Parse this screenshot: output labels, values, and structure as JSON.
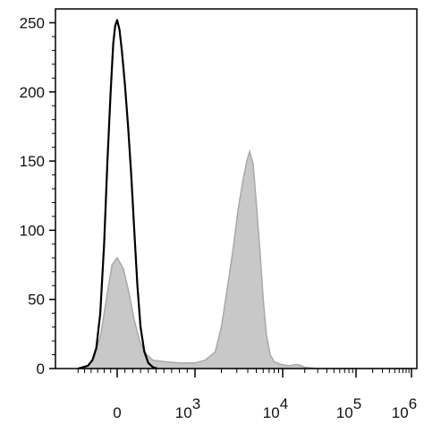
{
  "chart_data": {
    "type": "area",
    "title": "",
    "xlabel": "",
    "ylabel": "",
    "x_scale": "biexponential",
    "x_ticks": [
      {
        "value": 0,
        "base": "0",
        "exp": ""
      },
      {
        "value": 1000,
        "base": "10",
        "exp": "3"
      },
      {
        "value": 10000,
        "base": "10",
        "exp": "4"
      },
      {
        "value": 100000,
        "base": "10",
        "exp": "5"
      },
      {
        "value": 1000000,
        "base": "10",
        "exp": "6"
      }
    ],
    "y_ticks": [
      "0",
      "50",
      "100",
      "150",
      "200",
      "250"
    ],
    "ylim": [
      0,
      260
    ],
    "grid": false,
    "legend": "none",
    "series": [
      {
        "style": "line",
        "color": "#000000",
        "points": [
          [
            -600,
            0
          ],
          [
            -450,
            2
          ],
          [
            -380,
            6
          ],
          [
            -320,
            15
          ],
          [
            -260,
            40
          ],
          [
            -200,
            90
          ],
          [
            -150,
            150
          ],
          [
            -100,
            200
          ],
          [
            -60,
            235
          ],
          [
            -30,
            248
          ],
          [
            0,
            252
          ],
          [
            30,
            245
          ],
          [
            60,
            230
          ],
          [
            100,
            205
          ],
          [
            140,
            175
          ],
          [
            180,
            140
          ],
          [
            220,
            100
          ],
          [
            260,
            60
          ],
          [
            300,
            30
          ],
          [
            350,
            12
          ],
          [
            400,
            4
          ],
          [
            460,
            1
          ],
          [
            520,
            0
          ]
        ]
      },
      {
        "style": "filled",
        "color": "#c8c8c8",
        "points": [
          [
            -600,
            0
          ],
          [
            -450,
            2
          ],
          [
            -350,
            8
          ],
          [
            -250,
            25
          ],
          [
            -150,
            55
          ],
          [
            -80,
            75
          ],
          [
            0,
            80
          ],
          [
            80,
            72
          ],
          [
            150,
            55
          ],
          [
            220,
            35
          ],
          [
            300,
            18
          ],
          [
            380,
            10
          ],
          [
            460,
            6
          ],
          [
            600,
            5
          ],
          [
            800,
            4
          ],
          [
            1000,
            4
          ],
          [
            1300,
            6
          ],
          [
            1700,
            12
          ],
          [
            2000,
            30
          ],
          [
            2300,
            55
          ],
          [
            2700,
            85
          ],
          [
            3100,
            115
          ],
          [
            3500,
            135
          ],
          [
            3900,
            150
          ],
          [
            4200,
            157
          ],
          [
            4600,
            148
          ],
          [
            5000,
            120
          ],
          [
            5500,
            85
          ],
          [
            6000,
            50
          ],
          [
            6500,
            25
          ],
          [
            7200,
            10
          ],
          [
            8000,
            5
          ],
          [
            9500,
            3
          ],
          [
            12000,
            2
          ],
          [
            16000,
            3
          ],
          [
            20000,
            1
          ],
          [
            30000,
            0
          ],
          [
            1000000,
            0
          ]
        ]
      }
    ]
  }
}
